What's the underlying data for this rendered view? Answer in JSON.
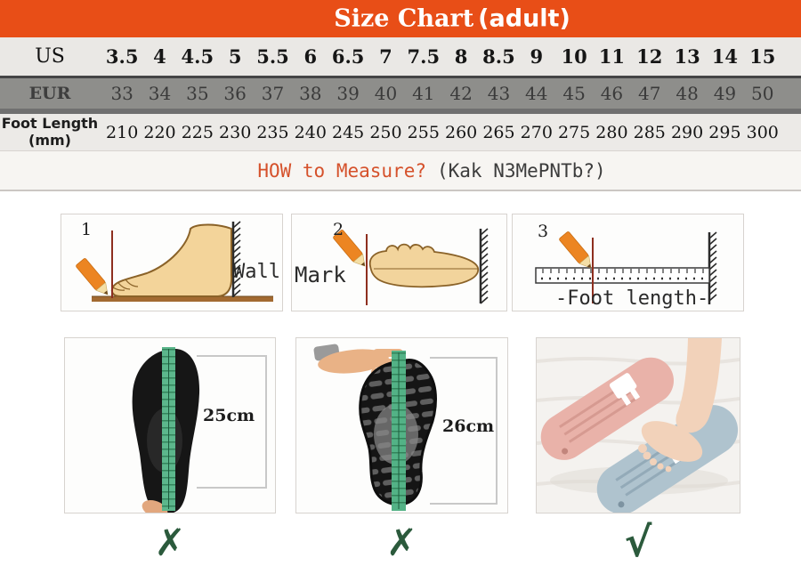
{
  "title": {
    "main": "Size Chart",
    "suffix": "(adult)"
  },
  "size_table": {
    "rows": [
      {
        "label": "US",
        "values": [
          "3.5",
          "4",
          "4.5",
          "5",
          "5.5",
          "6",
          "6.5",
          "7",
          "7.5",
          "8",
          "8.5",
          "9",
          "10",
          "11",
          "12",
          "13",
          "14",
          "15"
        ]
      },
      {
        "label": "EUR",
        "values": [
          "33",
          "34",
          "35",
          "36",
          "37",
          "38",
          "39",
          "40",
          "41",
          "42",
          "43",
          "44",
          "45",
          "46",
          "47",
          "48",
          "49",
          "50"
        ]
      },
      {
        "label": "Foot Length",
        "unit": "(mm)",
        "values": [
          "210",
          "220",
          "225",
          "230",
          "235",
          "240",
          "245",
          "250",
          "255",
          "260",
          "265",
          "270",
          "275",
          "280",
          "285",
          "290",
          "295",
          "300"
        ]
      }
    ]
  },
  "how_to_measure": {
    "highlight": "HOW to Measure?",
    "note": "(Kak N3MePNTb?)"
  },
  "steps": [
    {
      "number": "1",
      "label": "Wall"
    },
    {
      "number": "2",
      "label": "Mark"
    },
    {
      "number": "3",
      "label": "-Foot length-"
    }
  ],
  "examples": [
    {
      "measurement": "25cm",
      "verdict": "✗"
    },
    {
      "measurement": "26cm",
      "verdict": "✗"
    },
    {
      "verdict": "√"
    }
  ],
  "colors": {
    "accent_orange": "#E84E17",
    "eur_row_bg": "#8E8E8B",
    "highlight_text": "#D5512B",
    "verdict_green": "#2B5A3C"
  }
}
